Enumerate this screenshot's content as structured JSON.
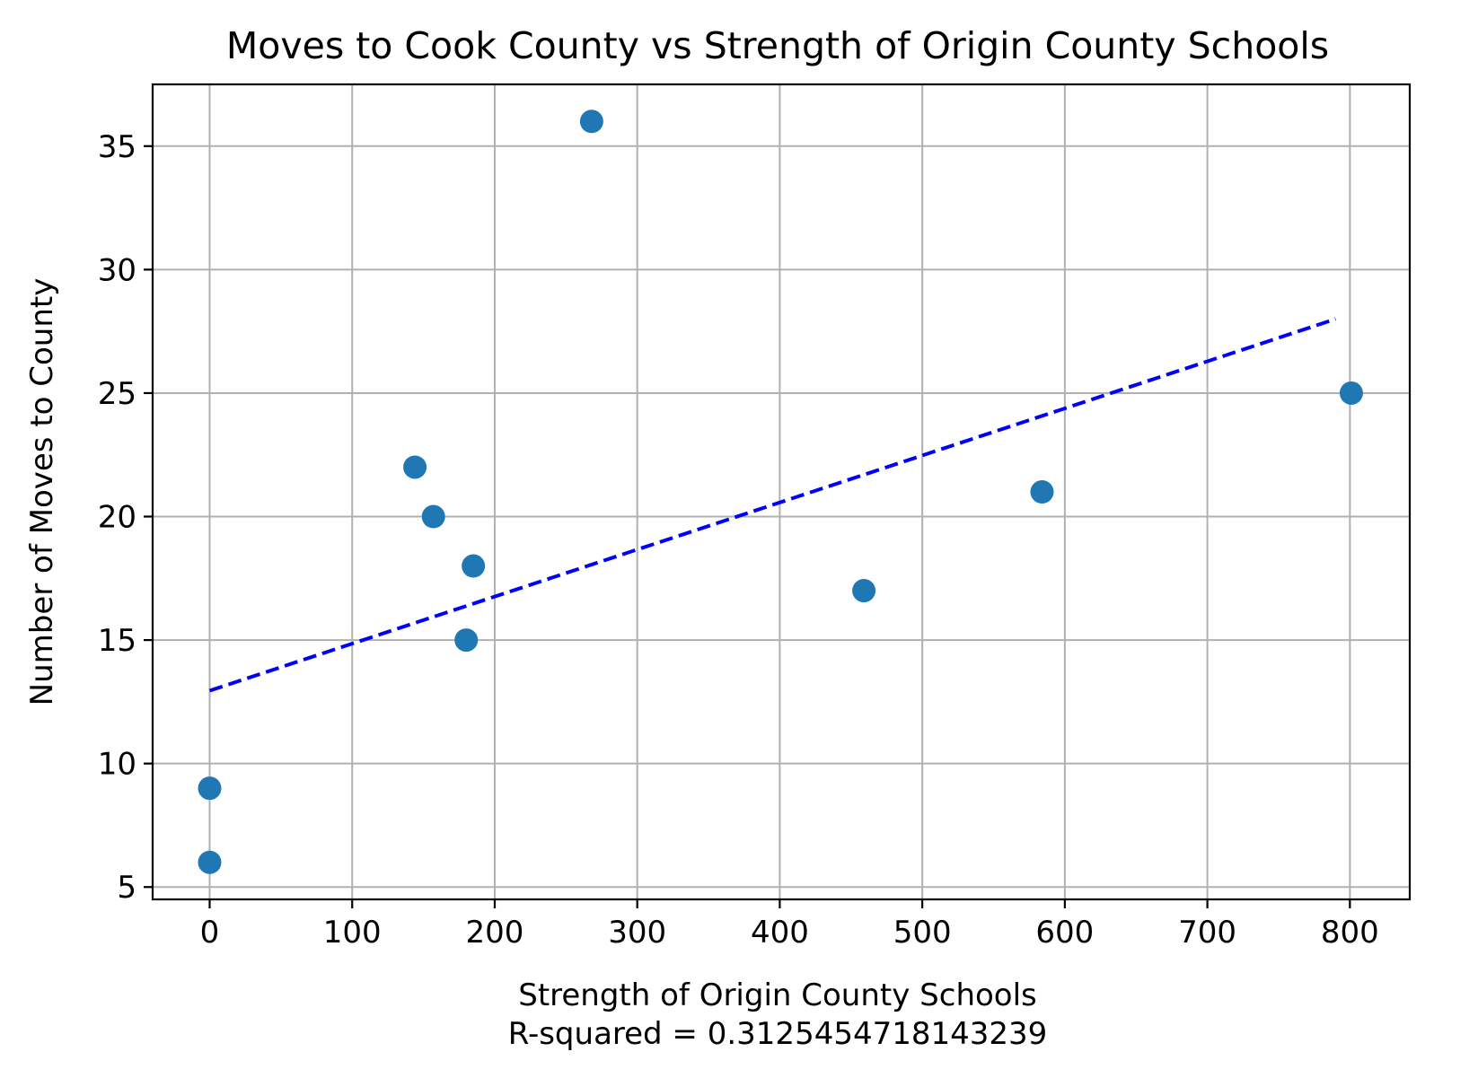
{
  "chart_data": {
    "type": "scatter",
    "title": "Moves to Cook County vs Strength of Origin County Schools",
    "xlabel": "Strength of Origin County Schools",
    "xlabel_sub": "R-squared = 0.3125454718143239",
    "ylabel": "Number of Moves to County",
    "xlim": [
      -40,
      842
    ],
    "ylim": [
      4.5,
      37.5
    ],
    "x_ticks": [
      0,
      100,
      200,
      300,
      400,
      500,
      600,
      700,
      800
    ],
    "y_ticks": [
      5,
      10,
      15,
      20,
      25,
      30,
      35
    ],
    "grid": true,
    "points": [
      {
        "x": 0,
        "y": 6
      },
      {
        "x": 0,
        "y": 9
      },
      {
        "x": 144,
        "y": 22
      },
      {
        "x": 157,
        "y": 20
      },
      {
        "x": 180,
        "y": 15
      },
      {
        "x": 185,
        "y": 18
      },
      {
        "x": 268,
        "y": 36
      },
      {
        "x": 459,
        "y": 17
      },
      {
        "x": 584,
        "y": 21
      },
      {
        "x": 801,
        "y": 25
      }
    ],
    "trendline": {
      "x": [
        0,
        790
      ],
      "y": [
        12.95,
        28.0
      ]
    },
    "colors": {
      "points": "#1f77b4",
      "trendline": "#0000ff",
      "grid": "#b0b0b0"
    }
  }
}
